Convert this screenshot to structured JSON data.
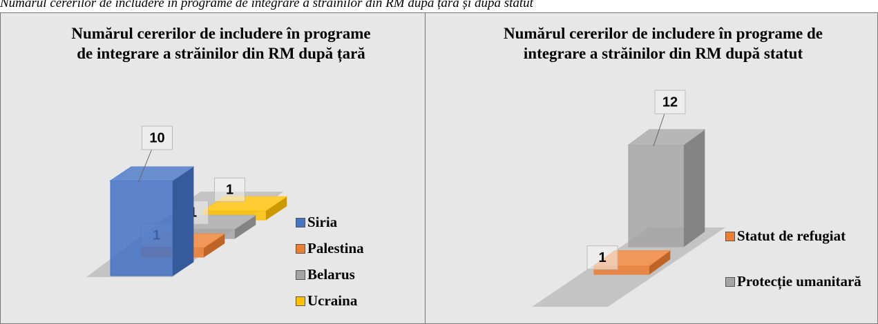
{
  "caption": "Numărul cererilor de includere în programe de integrare a străinilor din RM după țară și după statut",
  "chart_data": [
    {
      "type": "bar",
      "title": "Numărul cererilor de includere în programe de integrare a străinilor din RM după țară",
      "categories": [
        "Siria",
        "Palestina",
        "Belarus",
        "Ucraina"
      ],
      "values": [
        10,
        1,
        1,
        1
      ],
      "colors": [
        "#4472c4",
        "#ed7d31",
        "#a5a5a5",
        "#ffc000"
      ],
      "legend": "right"
    },
    {
      "type": "bar",
      "title": "Numărul cererilor de includere în programe de integrare a străinilor din RM după statut",
      "categories": [
        "Statut de refugiat",
        "Protecție umanitară"
      ],
      "values": [
        1,
        12
      ],
      "colors": [
        "#ed7d31",
        "#a5a5a5"
      ],
      "legend": "right"
    }
  ]
}
